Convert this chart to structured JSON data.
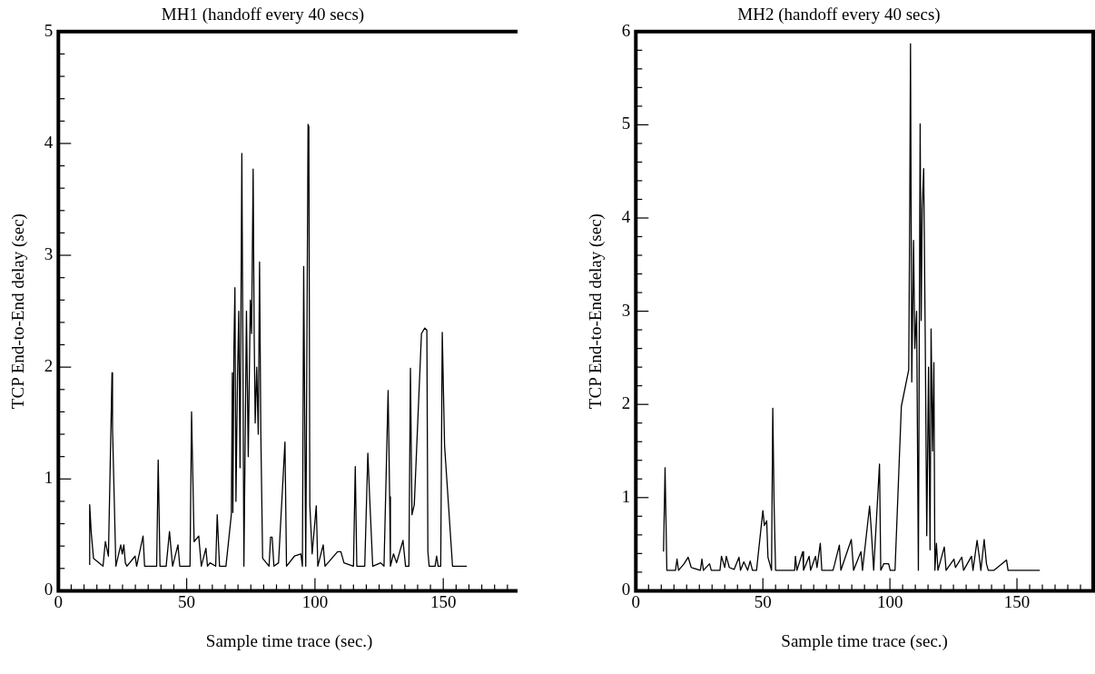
{
  "chart_data": [
    {
      "type": "line",
      "title": "MH1 (handoff every 40 secs)",
      "xlabel": "Sample time trace (sec.)",
      "ylabel": "TCP End-to-End delay (sec)",
      "grid": false,
      "legend": false,
      "marker": "none",
      "line_style": "solid",
      "xlim": [
        0,
        180
      ],
      "ylim": [
        0,
        5
      ],
      "xticks": [
        0,
        {
          "value": 5,
          "label": null
        },
        {
          "value": 10,
          "label": null
        },
        {
          "value": 15,
          "label": null
        },
        {
          "value": 20,
          "label": null
        },
        {
          "value": 25,
          "label": null
        },
        {
          "value": 30,
          "label": null
        },
        {
          "value": 35,
          "label": null
        },
        {
          "value": 40,
          "label": null
        },
        {
          "value": 45,
          "label": null
        },
        50,
        {
          "value": 55,
          "label": null
        },
        {
          "value": 60,
          "label": null
        },
        {
          "value": 65,
          "label": null
        },
        {
          "value": 70,
          "label": null
        },
        {
          "value": 75,
          "label": null
        },
        {
          "value": 80,
          "label": null
        },
        {
          "value": 85,
          "label": null
        },
        {
          "value": 90,
          "label": null
        },
        {
          "value": 95,
          "label": null
        },
        100,
        {
          "value": 105,
          "label": null
        },
        {
          "value": 110,
          "label": null
        },
        {
          "value": 115,
          "label": null
        },
        {
          "value": 120,
          "label": null
        },
        {
          "value": 125,
          "label": null
        },
        {
          "value": 130,
          "label": null
        },
        {
          "value": 135,
          "label": null
        },
        {
          "value": 140,
          "label": null
        },
        {
          "value": 145,
          "label": null
        },
        150,
        {
          "value": 155,
          "label": null
        },
        {
          "value": 160,
          "label": null
        },
        {
          "value": 165,
          "label": null
        },
        {
          "value": 170,
          "label": null
        },
        {
          "value": 175,
          "label": null
        },
        {
          "value": 180,
          "label": null
        }
      ],
      "yticks": [
        0,
        {
          "value": 0.2,
          "label": null
        },
        {
          "value": 0.4,
          "label": null
        },
        {
          "value": 0.6,
          "label": null
        },
        {
          "value": 0.8,
          "label": null
        },
        1,
        {
          "value": 1.2,
          "label": null
        },
        {
          "value": 1.4,
          "label": null
        },
        {
          "value": 1.6,
          "label": null
        },
        {
          "value": 1.8,
          "label": null
        },
        2,
        {
          "value": 2.2,
          "label": null
        },
        {
          "value": 2.4,
          "label": null
        },
        {
          "value": 2.6,
          "label": null
        },
        {
          "value": 2.8,
          "label": null
        },
        3,
        {
          "value": 3.2,
          "label": null
        },
        {
          "value": 3.4,
          "label": null
        },
        {
          "value": 3.6,
          "label": null
        },
        {
          "value": 3.8,
          "label": null
        },
        4,
        {
          "value": 4.2,
          "label": null
        },
        {
          "value": 4.4,
          "label": null
        },
        {
          "value": 4.6,
          "label": null
        },
        {
          "value": 4.8,
          "label": null
        },
        5
      ],
      "series": [
        {
          "color": "#000000",
          "x": [
            12.2,
            12.2,
            12.8,
            13.7,
            17.4,
            18.3,
            19.5,
            20.9,
            21.1,
            22.4,
            24.3,
            24.9,
            25.5,
            26.1,
            26.7,
            29.9,
            30.5,
            33.0,
            33.6,
            38.3,
            38.9,
            39.6,
            42.0,
            43.3,
            44.5,
            46.6,
            47.3,
            51.3,
            51.9,
            52.9,
            54.7,
            55.7,
            57.5,
            58.1,
            59.1,
            61.3,
            61.9,
            62.8,
            65.3,
            67.4,
            67.8,
            68.0,
            68.4,
            68.8,
            69.2,
            69.8,
            70.3,
            70.8,
            71.5,
            71.9,
            72.3,
            73.3,
            74.0,
            74.8,
            75.3,
            75.9,
            76.3,
            76.7,
            77.3,
            77.9,
            78.4,
            78.9,
            79.6,
            82.1,
            82.7,
            83.3,
            84.0,
            85.8,
            88.3,
            88.9,
            92.0,
            94.5,
            95.1,
            95.6,
            96.4,
            97.3,
            97.6,
            98.0,
            98.9,
            100.5,
            101.1,
            103.2,
            103.9,
            108.8,
            110.1,
            111.3,
            115.0,
            115.7,
            116.3,
            119.4,
            120.6,
            121.3,
            122.5,
            125.6,
            126.9,
            128.5,
            129.1,
            129.4,
            130.6,
            131.8,
            134.3,
            135.3,
            136.6,
            137.2,
            137.8,
            138.7,
            141.5,
            142.8,
            143.6,
            144.0,
            144.5,
            146.8,
            147.4,
            148.0,
            149.0,
            149.6,
            150.5,
            153.6,
            159.2
          ],
          "values": [
            0.23,
            0.77,
            0.52,
            0.29,
            0.22,
            0.44,
            0.31,
            1.95,
            1.46,
            0.22,
            0.41,
            0.33,
            0.41,
            0.25,
            0.22,
            0.31,
            0.22,
            0.49,
            0.22,
            0.22,
            1.17,
            0.22,
            0.22,
            0.53,
            0.22,
            0.41,
            0.22,
            0.22,
            1.6,
            0.44,
            0.49,
            0.22,
            0.38,
            0.22,
            0.25,
            0.22,
            0.68,
            0.22,
            0.22,
            0.68,
            1.95,
            0.7,
            2.15,
            2.71,
            0.8,
            1.9,
            2.5,
            1.1,
            3.91,
            2.2,
            0.22,
            2.5,
            1.2,
            2.6,
            2.3,
            3.77,
            2.3,
            1.5,
            2,
            1.4,
            2.94,
            1.4,
            0.29,
            0.22,
            0.48,
            0.48,
            0.22,
            0.25,
            1.33,
            0.22,
            0.31,
            0.33,
            0.22,
            2.9,
            0.22,
            4.17,
            4.15,
            0.76,
            0.33,
            0.76,
            0.22,
            0.41,
            0.22,
            0.35,
            0.35,
            0.25,
            0.22,
            1.11,
            0.22,
            0.22,
            1.23,
            0.84,
            0.22,
            0.25,
            0.22,
            1.79,
            0.84,
            0.22,
            0.33,
            0.25,
            0.45,
            0.22,
            0.22,
            1.99,
            0.68,
            0.77,
            2.3,
            2.35,
            2.33,
            0.35,
            0.22,
            0.22,
            0.31,
            0.22,
            0.22,
            2.31,
            1.3,
            0.22,
            0.22
          ]
        }
      ]
    },
    {
      "type": "line",
      "title": "MH2 (handoff every 40 secs)",
      "xlabel": "Sample time trace (sec.)",
      "ylabel": "TCP End-to-End delay (sec)",
      "grid": false,
      "legend": false,
      "marker": "none",
      "line_style": "solid",
      "xlim": [
        0,
        180
      ],
      "ylim": [
        0,
        6
      ],
      "xticks": [
        0,
        {
          "value": 5,
          "label": null
        },
        {
          "value": 10,
          "label": null
        },
        {
          "value": 15,
          "label": null
        },
        {
          "value": 20,
          "label": null
        },
        {
          "value": 25,
          "label": null
        },
        {
          "value": 30,
          "label": null
        },
        {
          "value": 35,
          "label": null
        },
        {
          "value": 40,
          "label": null
        },
        {
          "value": 45,
          "label": null
        },
        50,
        {
          "value": 55,
          "label": null
        },
        {
          "value": 60,
          "label": null
        },
        {
          "value": 65,
          "label": null
        },
        {
          "value": 70,
          "label": null
        },
        {
          "value": 75,
          "label": null
        },
        {
          "value": 80,
          "label": null
        },
        {
          "value": 85,
          "label": null
        },
        {
          "value": 90,
          "label": null
        },
        {
          "value": 95,
          "label": null
        },
        100,
        {
          "value": 105,
          "label": null
        },
        {
          "value": 110,
          "label": null
        },
        {
          "value": 115,
          "label": null
        },
        {
          "value": 120,
          "label": null
        },
        {
          "value": 125,
          "label": null
        },
        {
          "value": 130,
          "label": null
        },
        {
          "value": 135,
          "label": null
        },
        {
          "value": 140,
          "label": null
        },
        {
          "value": 145,
          "label": null
        },
        150,
        {
          "value": 155,
          "label": null
        },
        {
          "value": 160,
          "label": null
        },
        {
          "value": 165,
          "label": null
        },
        {
          "value": 170,
          "label": null
        },
        {
          "value": 175,
          "label": null
        },
        {
          "value": 180,
          "label": null
        }
      ],
      "yticks": [
        0,
        {
          "value": 0.2,
          "label": null
        },
        {
          "value": 0.4,
          "label": null
        },
        {
          "value": 0.6,
          "label": null
        },
        {
          "value": 0.8,
          "label": null
        },
        1,
        {
          "value": 1.2,
          "label": null
        },
        {
          "value": 1.4,
          "label": null
        },
        {
          "value": 1.6,
          "label": null
        },
        {
          "value": 1.8,
          "label": null
        },
        2,
        {
          "value": 2.2,
          "label": null
        },
        {
          "value": 2.4,
          "label": null
        },
        {
          "value": 2.6,
          "label": null
        },
        {
          "value": 2.8,
          "label": null
        },
        3,
        {
          "value": 3.2,
          "label": null
        },
        {
          "value": 3.4,
          "label": null
        },
        {
          "value": 3.6,
          "label": null
        },
        {
          "value": 3.8,
          "label": null
        },
        4,
        {
          "value": 4.2,
          "label": null
        },
        {
          "value": 4.4,
          "label": null
        },
        {
          "value": 4.6,
          "label": null
        },
        {
          "value": 4.8,
          "label": null
        },
        5,
        {
          "value": 5.2,
          "label": null
        },
        {
          "value": 5.4,
          "label": null
        },
        {
          "value": 5.6,
          "label": null
        },
        {
          "value": 5.8,
          "label": null
        },
        6
      ],
      "series": [
        {
          "color": "#000000",
          "x": [
            10.9,
            11.5,
            12.2,
            15.6,
            16.2,
            16.8,
            19.0,
            20.6,
            21.8,
            25.4,
            26.0,
            26.6,
            29.0,
            29.7,
            33.1,
            33.7,
            35.0,
            35.6,
            36.8,
            38.7,
            40.6,
            41.2,
            42.5,
            44.0,
            45.0,
            45.9,
            47.5,
            50.0,
            50.6,
            51.5,
            52.0,
            53.4,
            53.9,
            54.4,
            55.0,
            62.5,
            62.8,
            63.4,
            65.7,
            66.0,
            68.2,
            68.8,
            70.7,
            71.3,
            72.6,
            73.2,
            77.6,
            78.2,
            80.1,
            80.7,
            84.8,
            85.7,
            88.6,
            89.2,
            92.0,
            92.6,
            93.6,
            95.9,
            96.4,
            97.6,
            99.5,
            100.1,
            102.0,
            104.5,
            107.4,
            107.8,
            108.1,
            108.6,
            109.3,
            109.8,
            110.5,
            111.2,
            111.7,
            111.9,
            112.3,
            112.7,
            113.3,
            113.9,
            114.5,
            115.2,
            115.8,
            116.2,
            116.8,
            117.3,
            117.7,
            118.3,
            118.9,
            121.4,
            122.1,
            125.2,
            125.8,
            128.3,
            129.0,
            132.1,
            132.7,
            134.3,
            135.2,
            135.8,
            137.1,
            138.0,
            138.7,
            141.0,
            145.9,
            146.5,
            159.0
          ],
          "values": [
            0.42,
            1.32,
            0.22,
            0.22,
            0.34,
            0.22,
            0.29,
            0.36,
            0.25,
            0.22,
            0.34,
            0.22,
            0.29,
            0.22,
            0.22,
            0.37,
            0.25,
            0.37,
            0.25,
            0.23,
            0.36,
            0.22,
            0.31,
            0.22,
            0.32,
            0.22,
            0.22,
            0.86,
            0.7,
            0.75,
            0.36,
            0.22,
            1.96,
            0.94,
            0.22,
            0.22,
            0.37,
            0.22,
            0.42,
            0.22,
            0.37,
            0.22,
            0.37,
            0.25,
            0.51,
            0.22,
            0.22,
            0.28,
            0.49,
            0.22,
            0.55,
            0.22,
            0.42,
            0.22,
            0.91,
            0.68,
            0.22,
            1.36,
            0.22,
            0.29,
            0.29,
            0.22,
            0.22,
            1.98,
            2.37,
            4.1,
            5.87,
            2.24,
            3.76,
            2.6,
            3.0,
            0.22,
            3.7,
            5.01,
            2.9,
            4.1,
            4.53,
            2.7,
            0.59,
            2.4,
            0.44,
            2.81,
            1.5,
            2.45,
            0.22,
            0.51,
            0.22,
            0.47,
            0.22,
            0.34,
            0.25,
            0.36,
            0.22,
            0.37,
            0.22,
            0.54,
            0.36,
            0.22,
            0.55,
            0.29,
            0.22,
            0.22,
            0.33,
            0.22,
            0.22
          ]
        }
      ]
    }
  ]
}
